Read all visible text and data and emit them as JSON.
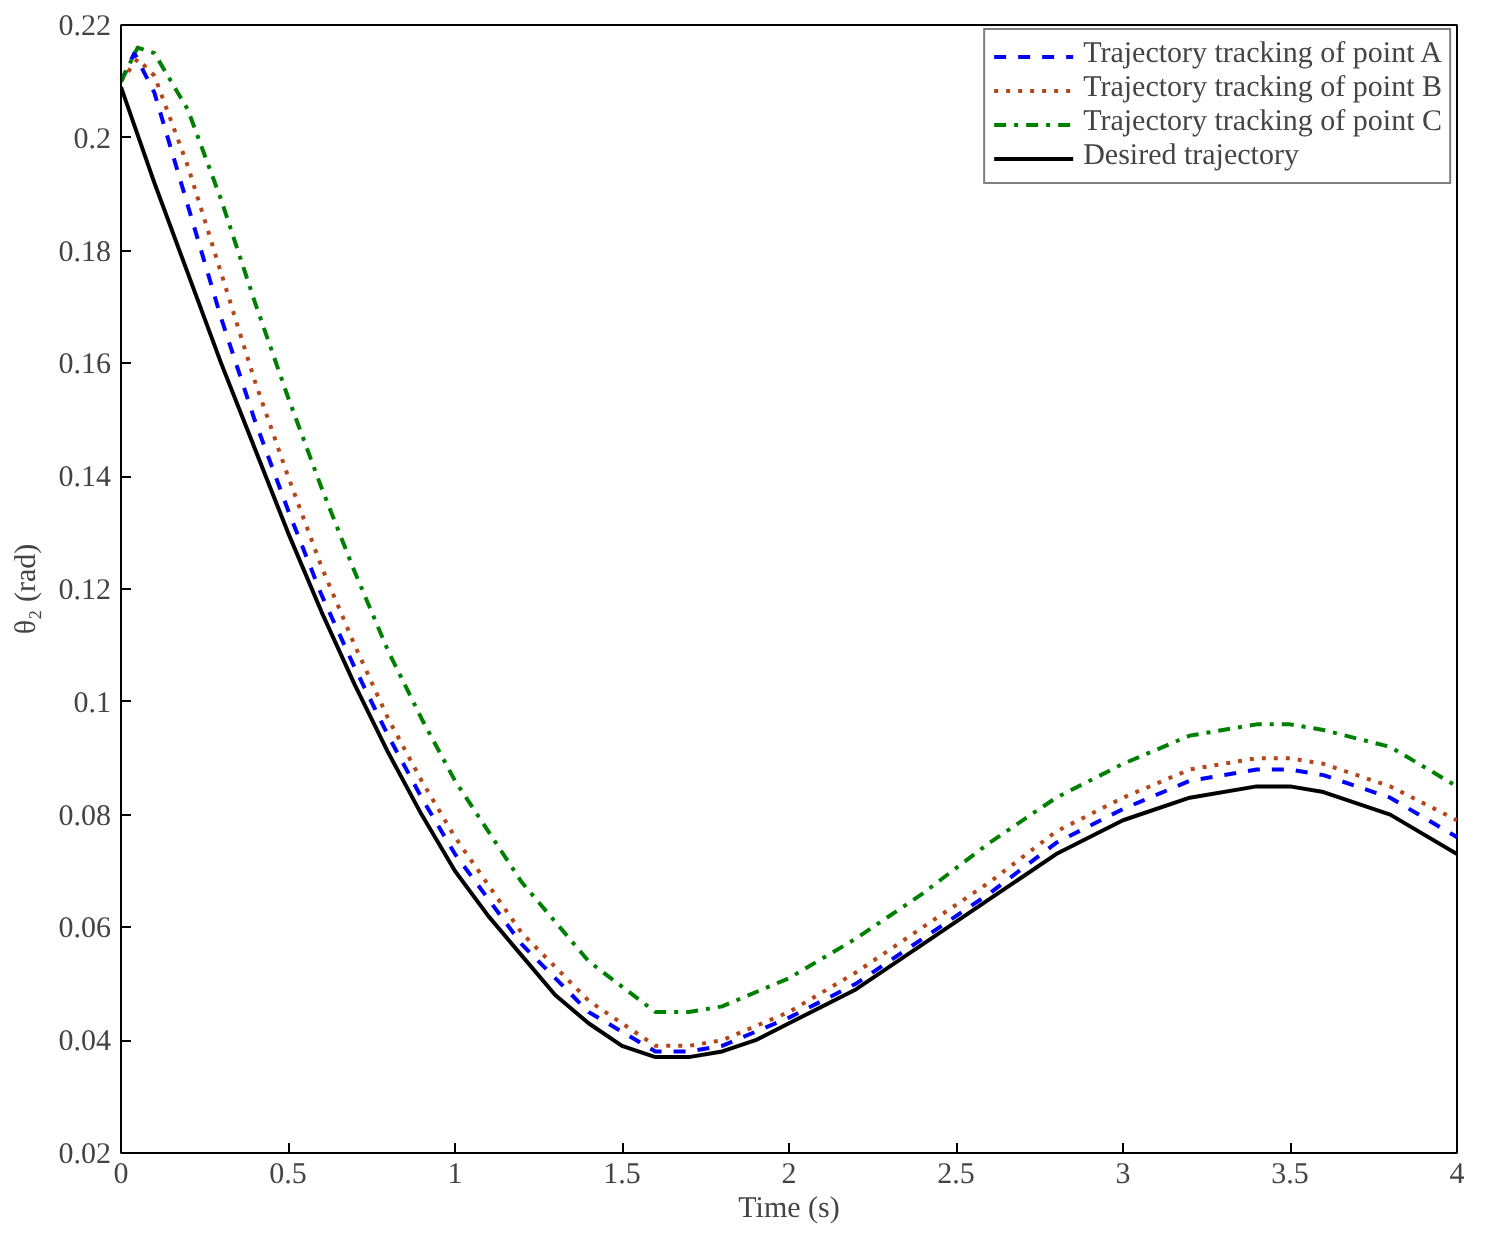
{
  "chart_data": {
    "type": "line",
    "xlabel": "Time (s)",
    "ylabel": "θ₂ (rad)",
    "xlim": [
      0,
      4
    ],
    "ylim": [
      0.02,
      0.22
    ],
    "xticks": [
      0,
      0.5,
      1,
      1.5,
      2,
      2.5,
      3,
      3.5,
      4
    ],
    "yticks": [
      0.02,
      0.04,
      0.06,
      0.08,
      0.1,
      0.12,
      0.14,
      0.16,
      0.18,
      0.2,
      0.22
    ],
    "grid": false,
    "legend": "top right",
    "marker": "none",
    "series": [
      {
        "name": "Trajectory tracking of point A",
        "color": "#0000ff",
        "line_style": "dashed",
        "x": [
          0,
          0.04,
          0.1,
          0.2,
          0.3,
          0.4,
          0.5,
          0.6,
          0.7,
          0.8,
          0.9,
          1.0,
          1.2,
          1.4,
          1.6,
          1.7,
          1.8,
          2.0,
          2.2,
          2.4,
          2.6,
          2.8,
          3.0,
          3.2,
          3.4,
          3.5,
          3.6,
          3.8,
          4.0
        ],
        "values": [
          0.21,
          0.215,
          0.208,
          0.188,
          0.168,
          0.15,
          0.134,
          0.119,
          0.106,
          0.094,
          0.083,
          0.073,
          0.057,
          0.045,
          0.038,
          0.038,
          0.039,
          0.044,
          0.05,
          0.058,
          0.066,
          0.075,
          0.081,
          0.086,
          0.088,
          0.088,
          0.087,
          0.083,
          0.076
        ]
      },
      {
        "name": "Trajectory tracking of point B",
        "color": "#b5451b",
        "line_style": "dotted",
        "x": [
          0,
          0.05,
          0.1,
          0.2,
          0.3,
          0.4,
          0.5,
          0.6,
          0.7,
          0.8,
          0.9,
          1.0,
          1.2,
          1.4,
          1.6,
          1.7,
          1.8,
          2.0,
          2.2,
          2.4,
          2.6,
          2.8,
          3.0,
          3.2,
          3.4,
          3.5,
          3.6,
          3.8,
          4.0
        ],
        "values": [
          0.21,
          0.214,
          0.211,
          0.195,
          0.176,
          0.157,
          0.14,
          0.124,
          0.11,
          0.097,
          0.086,
          0.076,
          0.059,
          0.047,
          0.039,
          0.039,
          0.04,
          0.045,
          0.052,
          0.06,
          0.068,
          0.077,
          0.083,
          0.088,
          0.09,
          0.09,
          0.089,
          0.085,
          0.079
        ]
      },
      {
        "name": "Trajectory tracking of point C",
        "color": "#008000",
        "line_style": "dashdot",
        "x": [
          0,
          0.05,
          0.1,
          0.2,
          0.3,
          0.4,
          0.5,
          0.6,
          0.7,
          0.8,
          0.9,
          1.0,
          1.2,
          1.4,
          1.6,
          1.7,
          1.8,
          2.0,
          2.2,
          2.4,
          2.6,
          2.8,
          3.0,
          3.2,
          3.4,
          3.5,
          3.6,
          3.8,
          4.0
        ],
        "values": [
          0.21,
          0.216,
          0.215,
          0.205,
          0.189,
          0.171,
          0.154,
          0.138,
          0.123,
          0.109,
          0.097,
          0.086,
          0.068,
          0.054,
          0.045,
          0.045,
          0.046,
          0.051,
          0.058,
          0.066,
          0.075,
          0.083,
          0.089,
          0.094,
          0.096,
          0.096,
          0.095,
          0.092,
          0.085
        ]
      },
      {
        "name": "Desired trajectory",
        "color": "#000000",
        "line_style": "solid",
        "x": [
          0,
          0.1,
          0.2,
          0.3,
          0.4,
          0.5,
          0.6,
          0.7,
          0.8,
          0.9,
          1.0,
          1.1,
          1.2,
          1.3,
          1.4,
          1.5,
          1.6,
          1.7,
          1.8,
          1.9,
          2.0,
          2.2,
          2.4,
          2.6,
          2.8,
          3.0,
          3.2,
          3.4,
          3.5,
          3.6,
          3.8,
          4.0
        ],
        "values": [
          0.209,
          0.192,
          0.176,
          0.16,
          0.145,
          0.13,
          0.116,
          0.103,
          0.091,
          0.08,
          0.07,
          0.062,
          0.055,
          0.048,
          0.043,
          0.039,
          0.037,
          0.037,
          0.038,
          0.04,
          0.043,
          0.049,
          0.057,
          0.065,
          0.073,
          0.079,
          0.083,
          0.085,
          0.085,
          0.084,
          0.08,
          0.073
        ]
      }
    ]
  }
}
